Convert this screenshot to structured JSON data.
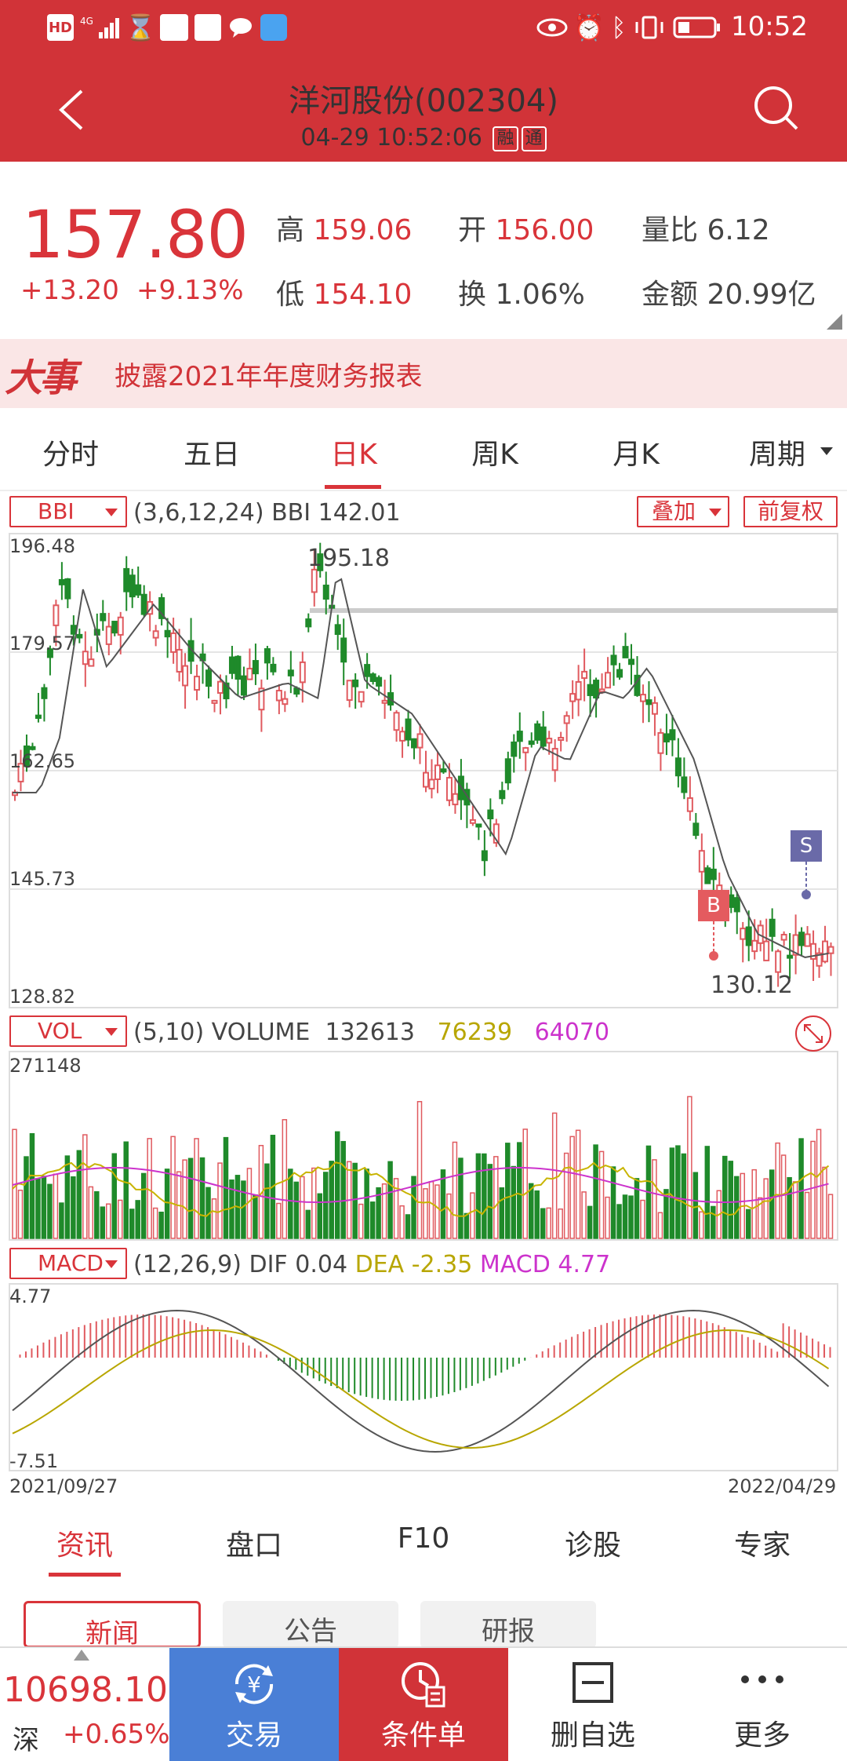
{
  "status": {
    "time": "10:52",
    "network": "4G"
  },
  "header": {
    "title": "洋河股份(002304)",
    "datetime": "04-29 10:52:06",
    "tag1": "融",
    "tag2": "通"
  },
  "quote": {
    "price": "157.80",
    "change": "+13.20",
    "change_pct": "+9.13%",
    "high_label": "高",
    "high": "159.06",
    "open_label": "开",
    "open": "156.00",
    "vol_ratio_label": "量比",
    "vol_ratio": "6.12",
    "low_label": "低",
    "low": "154.10",
    "turnover_label": "换",
    "turnover": "1.06%",
    "amount_label": "金额",
    "amount": "20.99亿"
  },
  "notice": {
    "logo": "大事",
    "text": "披露2021年年度财务报表"
  },
  "period_tabs": [
    "分时",
    "五日",
    "日K",
    "周K",
    "月K",
    "周期"
  ],
  "active_period": "日K",
  "main_chart": {
    "indicator": "BBI",
    "params": "(3,6,12,24) BBI  142.01",
    "overlay_btn": "叠加",
    "adjust_btn": "前复权",
    "y_labels": [
      "196.48",
      "179.57",
      "162.65",
      "145.73",
      "128.82"
    ],
    "high_mark": "195.18",
    "low_mark": "130.12",
    "buy_marker": "B",
    "sell_marker": "S"
  },
  "volume_chart": {
    "indicator": "VOL",
    "params": "(5,10) VOLUME",
    "volume": "132613",
    "ma5": "76239",
    "ma10": "64070",
    "y_max": "271148"
  },
  "macd_chart": {
    "indicator": "MACD",
    "params": "(12,26,9)",
    "dif_label": "DIF",
    "dif": "0.04",
    "dea_label": "DEA",
    "dea": "-2.35",
    "macd_label": "MACD",
    "macd": "4.77",
    "y_max": "4.77",
    "y_min": "-7.51",
    "date_start": "2021/09/27",
    "date_end": "2022/04/29"
  },
  "bottom_tabs": [
    "资讯",
    "盘口",
    "F10",
    "诊股",
    "专家"
  ],
  "sub_tabs": [
    "新闻",
    "公告",
    "研报"
  ],
  "footer": {
    "index_value": "10698.10",
    "index_name": "深",
    "index_change": "+0.65%",
    "trade": "交易",
    "condition": "条件单",
    "remove_watch": "删自选",
    "more": "更多"
  },
  "colors": {
    "brand_red": "#d13338",
    "up": "#e05a5f",
    "down": "#1f8a2a",
    "trade_blue": "#4a7fd6"
  }
}
